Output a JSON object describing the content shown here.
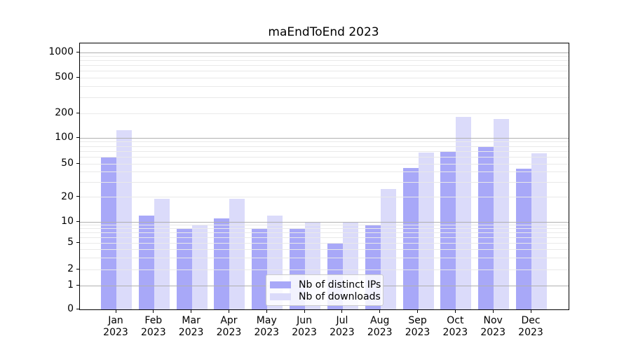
{
  "chart_data": {
    "type": "bar",
    "title": "maEndToEnd 2023",
    "categories": [
      {
        "month": "Jan",
        "year": "2023"
      },
      {
        "month": "Feb",
        "year": "2023"
      },
      {
        "month": "Mar",
        "year": "2023"
      },
      {
        "month": "Apr",
        "year": "2023"
      },
      {
        "month": "May",
        "year": "2023"
      },
      {
        "month": "Jun",
        "year": "2023"
      },
      {
        "month": "Jul",
        "year": "2023"
      },
      {
        "month": "Aug",
        "year": "2023"
      },
      {
        "month": "Sep",
        "year": "2023"
      },
      {
        "month": "Oct",
        "year": "2023"
      },
      {
        "month": "Nov",
        "year": "2023"
      },
      {
        "month": "Dec",
        "year": "2023"
      }
    ],
    "series": [
      {
        "name": "Nb of distinct IPs",
        "color": "#a8a8f8",
        "values": [
          60,
          12,
          8,
          11,
          8,
          8,
          5,
          9,
          45,
          70,
          80,
          44
        ]
      },
      {
        "name": "Nb of downloads",
        "color": "#dbdbfa",
        "values": [
          125,
          19,
          9,
          19,
          12,
          10,
          10,
          25,
          68,
          180,
          170,
          67
        ]
      }
    ],
    "y_axis": {
      "scale": "symlog",
      "tick_labels": [
        0,
        1,
        2,
        5,
        10,
        20,
        50,
        100,
        200,
        500,
        1000
      ],
      "major_grid_values": [
        1,
        10,
        100,
        1000
      ],
      "minor_grid_values": [
        2,
        3,
        4,
        5,
        6,
        7,
        8,
        9,
        20,
        30,
        40,
        50,
        60,
        70,
        80,
        90,
        200,
        300,
        400,
        500,
        600,
        700,
        800,
        900
      ],
      "ylim": [
        0,
        1300
      ]
    },
    "x_axis": {
      "tick_labels_two_line": true
    },
    "legend": {
      "position": "lower center"
    },
    "grid": true,
    "colors": {
      "major_grid": "#b0b0b0",
      "minor_grid": "#e9e9e9",
      "axis": "#000000",
      "background": "#ffffff"
    }
  }
}
